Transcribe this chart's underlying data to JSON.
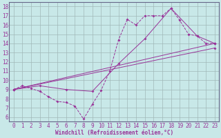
{
  "xlabel": "Windchill (Refroidissement éolien,°C)",
  "background_color": "#c8e8e8",
  "grid_color": "#a0b8b8",
  "line_color": "#993399",
  "spine_color": "#666688",
  "xlim": [
    -0.5,
    23.5
  ],
  "ylim": [
    5.5,
    18.5
  ],
  "xticks": [
    0,
    1,
    2,
    3,
    4,
    5,
    6,
    7,
    8,
    9,
    10,
    11,
    12,
    13,
    14,
    15,
    16,
    17,
    18,
    19,
    20,
    21,
    22,
    23
  ],
  "yticks": [
    6,
    7,
    8,
    9,
    10,
    11,
    12,
    13,
    14,
    15,
    16,
    17,
    18
  ],
  "series1_x": [
    0,
    1,
    2,
    3,
    4,
    5,
    6,
    7,
    8,
    9,
    10,
    11,
    12,
    13,
    14,
    15,
    16,
    17,
    18,
    19,
    20,
    21,
    22,
    23
  ],
  "series1_y": [
    9.0,
    9.4,
    9.1,
    8.8,
    8.2,
    7.7,
    7.6,
    7.2,
    5.8,
    7.4,
    8.9,
    11.0,
    14.4,
    16.6,
    16.0,
    17.0,
    17.0,
    17.0,
    17.8,
    16.5,
    15.0,
    14.8,
    14.0,
    14.0
  ],
  "series2_x": [
    0,
    3,
    6,
    9,
    12,
    15,
    18,
    21,
    23
  ],
  "series2_y": [
    9.0,
    9.4,
    9.0,
    8.8,
    11.8,
    14.5,
    17.8,
    14.8,
    14.0
  ],
  "series3_x": [
    0,
    23
  ],
  "series3_y": [
    9.0,
    14.0
  ],
  "series4_x": [
    0,
    23
  ],
  "series4_y": [
    9.0,
    13.5
  ],
  "tick_fontsize": 5.5,
  "xlabel_fontsize": 5.5
}
